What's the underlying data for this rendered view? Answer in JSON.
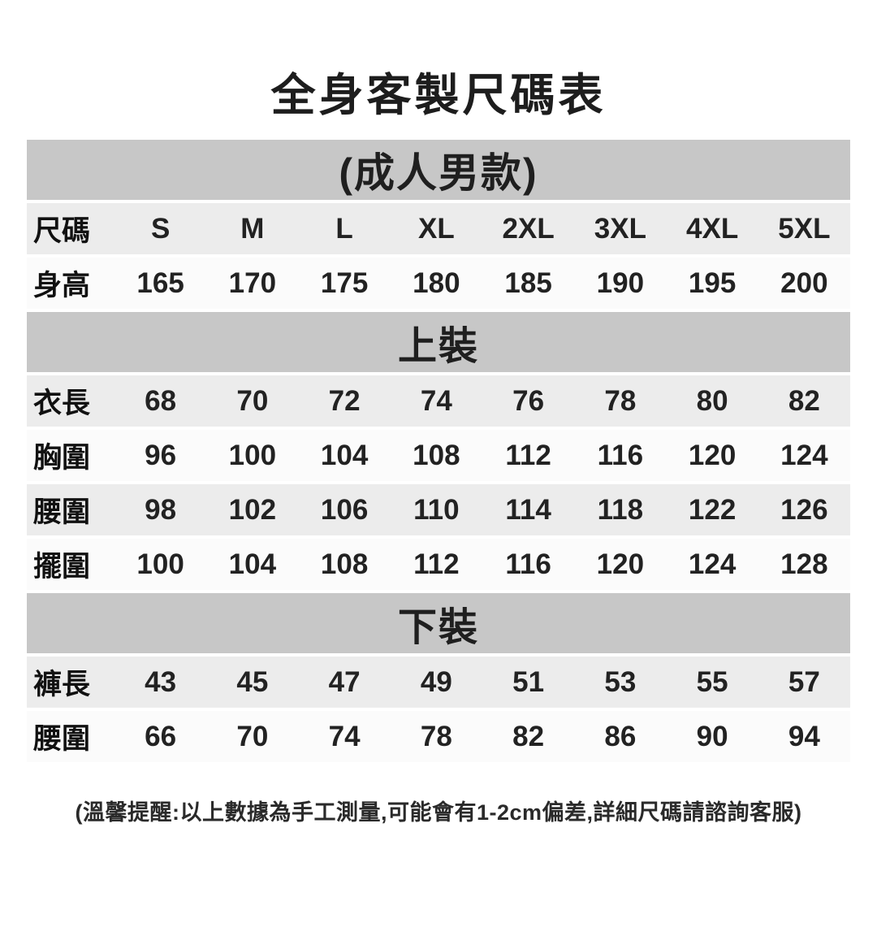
{
  "title": "全身客製尺碼表",
  "table": {
    "band_group": "(成人男款)",
    "band_top": "上裝",
    "band_bottom": "下裝",
    "rows": [
      {
        "label": "尺碼",
        "v": [
          "S",
          "M",
          "L",
          "XL",
          "2XL",
          "3XL",
          "4XL",
          "5XL"
        ]
      },
      {
        "label": "身高",
        "v": [
          "165",
          "170",
          "175",
          "180",
          "185",
          "190",
          "195",
          "200"
        ]
      },
      {
        "label": "衣長",
        "v": [
          "68",
          "70",
          "72",
          "74",
          "76",
          "78",
          "80",
          "82"
        ]
      },
      {
        "label": "胸圍",
        "v": [
          "96",
          "100",
          "104",
          "108",
          "112",
          "116",
          "120",
          "124"
        ]
      },
      {
        "label": "腰圍",
        "v": [
          "98",
          "102",
          "106",
          "110",
          "114",
          "118",
          "122",
          "126"
        ]
      },
      {
        "label": "擺圍",
        "v": [
          "100",
          "104",
          "108",
          "112",
          "116",
          "120",
          "124",
          "128"
        ]
      },
      {
        "label": "褲長",
        "v": [
          "43",
          "45",
          "47",
          "49",
          "51",
          "53",
          "55",
          "57"
        ]
      },
      {
        "label": "腰圍",
        "v": [
          "66",
          "70",
          "74",
          "78",
          "82",
          "86",
          "90",
          "94"
        ]
      }
    ]
  },
  "footer_note": "(溫馨提醒:以上數據為手工測量,可能會有1-2cm偏差,詳細尺碼請諮詢客服)",
  "colors": {
    "section_band": "#c7c7c7",
    "row_shaded": "#ececec",
    "row_plain": "#fbfbfb",
    "text": "#1d1d1d",
    "background": "#ffffff"
  }
}
